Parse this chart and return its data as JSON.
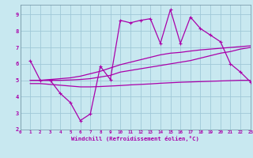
{
  "xlabel": "Windchill (Refroidissement éolien,°C)",
  "background_color": "#c8e8f0",
  "grid_color": "#a0c8d8",
  "line_color": "#aa00aa",
  "xlim": [
    0,
    23
  ],
  "ylim": [
    2,
    9.6
  ],
  "xticks": [
    0,
    1,
    2,
    3,
    4,
    5,
    6,
    7,
    8,
    9,
    10,
    11,
    12,
    13,
    14,
    15,
    16,
    17,
    18,
    19,
    20,
    21,
    22,
    23
  ],
  "yticks": [
    2,
    3,
    4,
    5,
    6,
    7,
    8,
    9
  ],
  "series": [
    {
      "x": [
        1,
        2,
        3,
        4,
        5,
        6,
        7,
        8,
        9,
        10,
        11,
        12,
        13,
        14,
        15,
        16,
        17,
        18,
        19,
        20,
        21,
        22,
        23
      ],
      "y": [
        6.2,
        5.0,
        5.0,
        4.2,
        3.65,
        2.55,
        2.95,
        5.85,
        5.05,
        8.65,
        8.5,
        8.65,
        8.75,
        7.25,
        9.3,
        7.25,
        8.85,
        8.15,
        7.75,
        7.35,
        6.0,
        5.5,
        4.9
      ],
      "marker": "+"
    },
    {
      "x": [
        1,
        2,
        3,
        4,
        5,
        6,
        7,
        8,
        9,
        10,
        11,
        12,
        13,
        14,
        15,
        16,
        17,
        18,
        19,
        20,
        21,
        22,
        23
      ],
      "y": [
        4.8,
        4.8,
        4.75,
        4.7,
        4.65,
        4.6,
        4.6,
        4.62,
        4.65,
        4.68,
        4.72,
        4.75,
        4.78,
        4.82,
        4.85,
        4.88,
        4.9,
        4.92,
        4.94,
        4.96,
        4.98,
        5.0,
        5.0
      ],
      "marker": null
    },
    {
      "x": [
        1,
        2,
        3,
        4,
        5,
        6,
        7,
        8,
        9,
        10,
        11,
        12,
        13,
        14,
        15,
        16,
        17,
        18,
        19,
        20,
        21,
        22,
        23
      ],
      "y": [
        5.0,
        5.0,
        5.0,
        5.0,
        5.02,
        5.05,
        5.1,
        5.2,
        5.3,
        5.5,
        5.6,
        5.7,
        5.8,
        5.9,
        6.0,
        6.1,
        6.2,
        6.35,
        6.5,
        6.65,
        6.75,
        6.9,
        7.0
      ],
      "marker": null
    },
    {
      "x": [
        1,
        2,
        3,
        4,
        5,
        6,
        7,
        8,
        9,
        10,
        11,
        12,
        13,
        14,
        15,
        16,
        17,
        18,
        19,
        20,
        21,
        22,
        23
      ],
      "y": [
        5.0,
        5.0,
        5.05,
        5.1,
        5.15,
        5.25,
        5.4,
        5.55,
        5.75,
        5.95,
        6.1,
        6.25,
        6.4,
        6.55,
        6.65,
        6.7,
        6.78,
        6.85,
        6.9,
        6.95,
        7.0,
        7.05,
        7.1
      ],
      "marker": null
    }
  ]
}
